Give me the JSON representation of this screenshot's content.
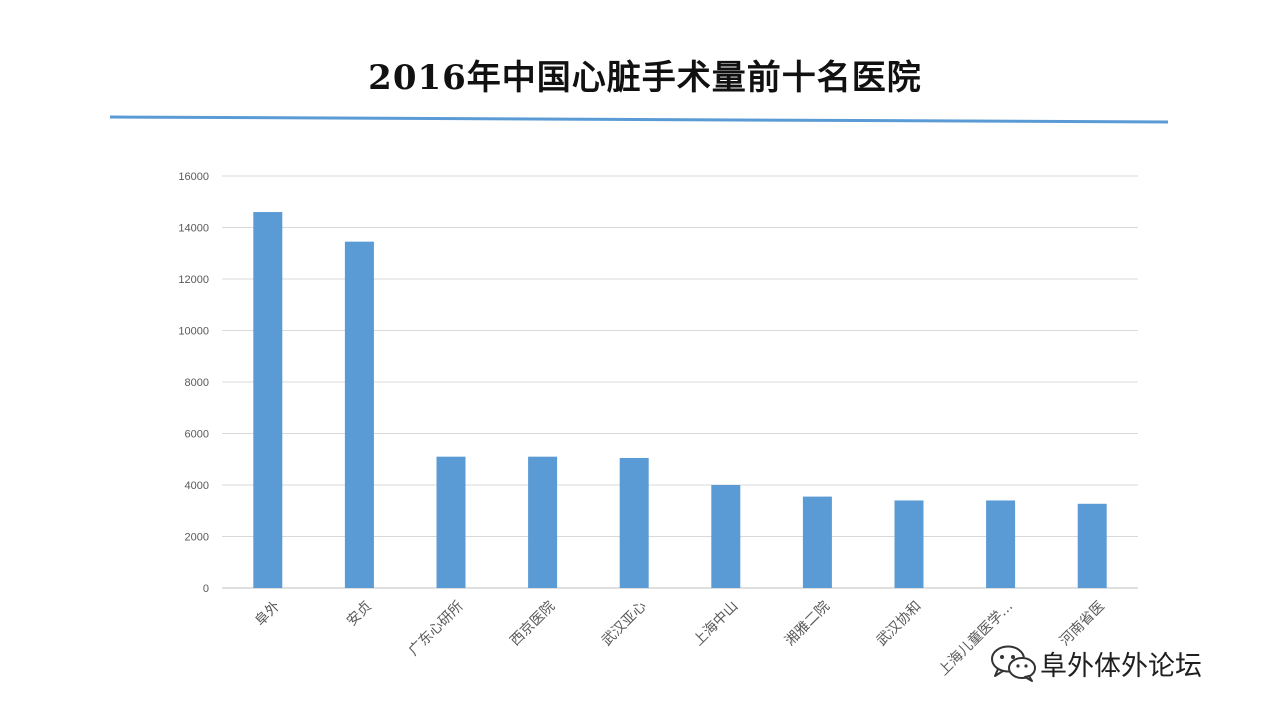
{
  "title": "2016年中国心脏手术量前十名医院",
  "accent_color": "#5b9bd5",
  "rule_color": "#5b9bd5",
  "watermark": {
    "icon": "wechat-icon",
    "text": "阜外体外论坛"
  },
  "chart_data": {
    "type": "bar",
    "title": "2016年中国心脏手术量前十名医院",
    "categories": [
      "阜外",
      "安贞",
      "广东心研所",
      "西京医院",
      "武汉亚心",
      "上海中山",
      "湘雅二院",
      "武汉协和",
      "上海儿童医学…",
      "河南省医"
    ],
    "values": [
      14600,
      13450,
      5100,
      5100,
      5050,
      4000,
      3550,
      3400,
      3400,
      3270
    ],
    "ylim": [
      0,
      16000
    ],
    "yticks": [
      0,
      2000,
      4000,
      6000,
      8000,
      10000,
      12000,
      14000,
      16000
    ],
    "grid": true,
    "bar_color": "#5b9bd5",
    "xlabel": "",
    "ylabel": ""
  }
}
